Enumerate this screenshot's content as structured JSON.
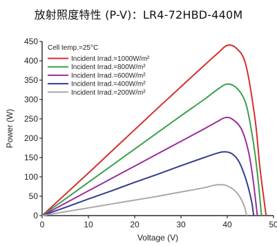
{
  "chart_data": {
    "type": "line",
    "title": "放射照度特性 (P-V)：LR4-72HBD-440M",
    "xlabel": "Voltage (V)",
    "ylabel": "Power (W)",
    "xlim": [
      0,
      50
    ],
    "ylim": [
      0,
      450
    ],
    "x_ticks": [
      0,
      10,
      20,
      30,
      40,
      50
    ],
    "y_ticks": [
      0,
      50,
      100,
      150,
      200,
      250,
      300,
      350,
      400,
      450
    ],
    "grid": false,
    "legend_position": "top-left",
    "annotation": "Cell temp.=25°C",
    "series": [
      {
        "name": "Incident Irrad.=1000W/m²",
        "color": "#d62d2d",
        "points": [
          [
            0,
            0
          ],
          [
            5,
            55
          ],
          [
            10,
            110
          ],
          [
            15,
            166
          ],
          [
            20,
            222
          ],
          [
            25,
            278
          ],
          [
            30,
            333
          ],
          [
            35,
            388
          ],
          [
            38,
            420
          ],
          [
            40,
            440
          ],
          [
            42,
            432
          ],
          [
            44,
            390
          ],
          [
            46,
            250
          ],
          [
            47,
            130
          ],
          [
            48,
            35
          ],
          [
            48.4,
            0
          ]
        ]
      },
      {
        "name": "Incident Irrad.=800W/m²",
        "color": "#3aa04a",
        "points": [
          [
            0,
            0
          ],
          [
            5,
            43
          ],
          [
            10,
            86
          ],
          [
            15,
            129
          ],
          [
            20,
            172
          ],
          [
            25,
            215
          ],
          [
            30,
            258
          ],
          [
            35,
            300
          ],
          [
            38,
            327
          ],
          [
            40,
            340
          ],
          [
            42,
            330
          ],
          [
            44,
            290
          ],
          [
            45.5,
            200
          ],
          [
            46.5,
            110
          ],
          [
            47.4,
            0
          ]
        ]
      },
      {
        "name": "Incident Irrad.=600W/m²",
        "color": "#9b2d9b",
        "points": [
          [
            0,
            0
          ],
          [
            5,
            32
          ],
          [
            10,
            64
          ],
          [
            15,
            96
          ],
          [
            20,
            128
          ],
          [
            25,
            160
          ],
          [
            30,
            192
          ],
          [
            35,
            224
          ],
          [
            38,
            244
          ],
          [
            39.5,
            253
          ],
          [
            41,
            250
          ],
          [
            43,
            225
          ],
          [
            44.5,
            170
          ],
          [
            45.5,
            100
          ],
          [
            46.5,
            0
          ]
        ]
      },
      {
        "name": "Incident Irrad.=400W/m²",
        "color": "#333b90",
        "points": [
          [
            0,
            0
          ],
          [
            5,
            21
          ],
          [
            10,
            43
          ],
          [
            15,
            64
          ],
          [
            20,
            86
          ],
          [
            25,
            107
          ],
          [
            30,
            129
          ],
          [
            35,
            150
          ],
          [
            38,
            162
          ],
          [
            39.5,
            165
          ],
          [
            41,
            160
          ],
          [
            42.5,
            140
          ],
          [
            44,
            95
          ],
          [
            45.2,
            40
          ],
          [
            45.7,
            0
          ]
        ]
      },
      {
        "name": "Incident Irrad.=200W/m²",
        "color": "#a9a9a9",
        "points": [
          [
            0,
            0
          ],
          [
            5,
            10
          ],
          [
            10,
            20
          ],
          [
            15,
            30
          ],
          [
            20,
            40
          ],
          [
            25,
            50
          ],
          [
            30,
            61
          ],
          [
            35,
            72
          ],
          [
            37,
            78
          ],
          [
            38.5,
            80
          ],
          [
            40,
            77
          ],
          [
            42,
            60
          ],
          [
            43.5,
            30
          ],
          [
            44.2,
            0
          ]
        ]
      }
    ]
  }
}
